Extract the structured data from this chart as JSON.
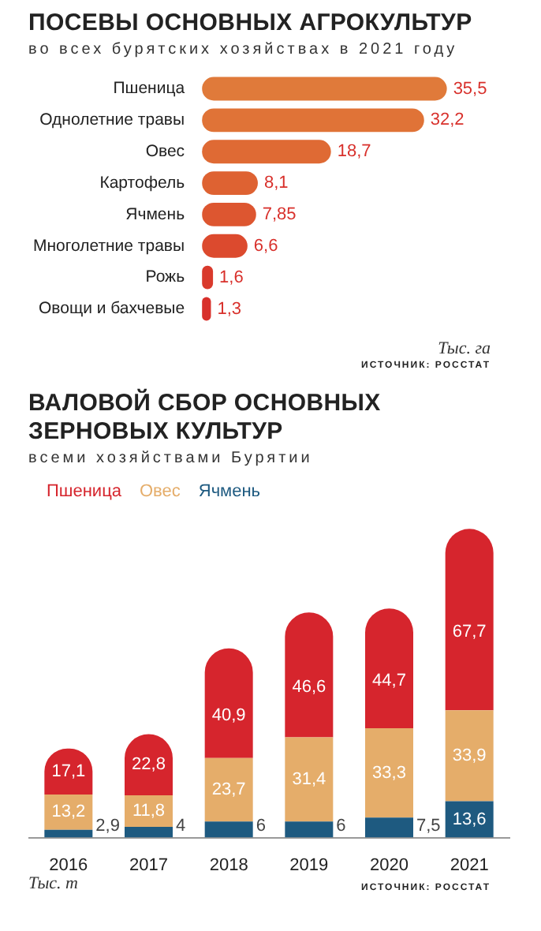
{
  "chart_data": [
    {
      "type": "bar",
      "orientation": "horizontal",
      "title": "ПОСЕВЫ ОСНОВНЫХ АГРОКУЛЬТУР",
      "subtitle": "во всех бурятских хозяйствах в 2021 году",
      "categories": [
        "Пшеница",
        "Однолетние травы",
        "Овес",
        "Картофель",
        "Ячмень",
        "Многолетние травы",
        "Рожь",
        "Овощи и бахчевые"
      ],
      "values": [
        35.5,
        32.2,
        18.7,
        8.1,
        7.85,
        6.6,
        1.6,
        1.3
      ],
      "colors": [
        "#e07a3a",
        "#e07337",
        "#df6a34",
        "#de6232",
        "#dd5630",
        "#dc4a2e",
        "#d93a2c",
        "#d8302b"
      ],
      "value_labels": [
        "35,5",
        "32,2",
        "18,7",
        "8,1",
        "7,85",
        "6,6",
        "1,6",
        "1,3"
      ],
      "annotations": [
        "Тыс. га",
        "ИСТОЧНИК: РОССТАТ"
      ]
    },
    {
      "type": "bar",
      "stacked": true,
      "title": "ВАЛОВОЙ СБОР ОСНОВНЫХ ЗЕРНОВЫХ КУЛЬТУР",
      "subtitle": "всеми хозяйствами Бурятии",
      "categories": [
        "2016",
        "2017",
        "2018",
        "2019",
        "2020",
        "2021"
      ],
      "series": [
        {
          "name": "Ячмень",
          "color": "#1e5a80",
          "values": [
            2.9,
            4,
            6,
            6,
            7.5,
            13.6
          ],
          "value_labels": [
            "2,9",
            "4",
            "6",
            "6",
            "7,5",
            "13,6"
          ]
        },
        {
          "name": "Овес",
          "color": "#e5ad6a",
          "values": [
            13.2,
            11.8,
            23.7,
            31.4,
            33.3,
            33.9
          ],
          "value_labels": [
            "13,2",
            "11,8",
            "23,7",
            "31,4",
            "33,3",
            "33,9"
          ]
        },
        {
          "name": "Пшеница",
          "color": "#d6252d",
          "values": [
            17.1,
            22.8,
            40.9,
            46.6,
            44.7,
            67.7
          ],
          "value_labels": [
            "17,1",
            "22,8",
            "40,9",
            "46,6",
            "44,7",
            "67,7"
          ]
        }
      ],
      "legend": "top left",
      "annotations": [
        "Тыс. т",
        "ИСТОЧНИК: РОССТАТ"
      ]
    }
  ]
}
